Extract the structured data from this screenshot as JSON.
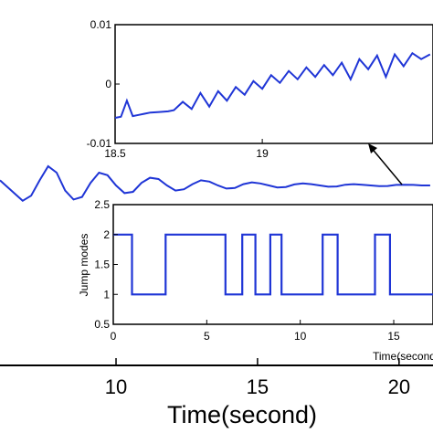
{
  "chart_data": [
    {
      "type": "line",
      "role": "main",
      "xlabel": "Time(second)",
      "xlim": [
        5.9,
        21.2
      ],
      "xticks": [
        "10",
        "15",
        "20"
      ],
      "series": [
        {
          "color": "#1f35d6",
          "x": [
            5.9,
            6.1,
            6.4,
            6.7,
            7.0,
            7.3,
            7.6,
            7.9,
            8.2,
            8.5,
            8.8,
            9.1,
            9.4,
            9.7,
            10.0,
            10.3,
            10.6,
            10.9,
            11.2,
            11.5,
            11.8,
            12.1,
            12.4,
            12.7,
            13.0,
            13.3,
            13.6,
            13.9,
            14.2,
            14.5,
            14.8,
            15.1,
            15.4,
            15.7,
            16.0,
            16.3,
            16.6,
            16.9,
            17.2,
            17.5,
            17.8,
            18.1,
            18.4,
            18.7,
            19.0,
            19.3,
            19.6,
            19.9,
            20.2,
            20.5,
            20.8,
            21.1
          ],
          "y": [
            0.2,
            0.0,
            -0.3,
            -0.6,
            -0.4,
            0.2,
            0.75,
            0.5,
            -0.2,
            -0.55,
            -0.45,
            0.1,
            0.5,
            0.4,
            0.0,
            -0.3,
            -0.25,
            0.1,
            0.3,
            0.25,
            0.0,
            -0.2,
            -0.15,
            0.05,
            0.2,
            0.15,
            0.0,
            -0.12,
            -0.1,
            0.05,
            0.12,
            0.08,
            0.0,
            -0.08,
            -0.06,
            0.04,
            0.08,
            0.05,
            0.0,
            -0.05,
            -0.04,
            0.03,
            0.05,
            0.03,
            0.0,
            -0.03,
            -0.02,
            0.02,
            0.03,
            0.02,
            0.0,
            0.0
          ]
        }
      ]
    },
    {
      "type": "line",
      "role": "zoom-inset",
      "xlim": [
        18.5,
        19.58
      ],
      "ylim": [
        -0.01,
        0.01
      ],
      "xticks": [
        "18.5",
        "19"
      ],
      "yticks": [
        "0.01",
        "0",
        "-0.01"
      ],
      "series": [
        {
          "color": "#1f35d6",
          "x": [
            18.5,
            18.52,
            18.54,
            18.56,
            18.58,
            18.6,
            18.62,
            18.65,
            18.68,
            18.7,
            18.73,
            18.76,
            18.79,
            18.82,
            18.85,
            18.88,
            18.91,
            18.94,
            18.97,
            19.0,
            19.03,
            19.06,
            19.09,
            19.12,
            19.15,
            19.18,
            19.21,
            19.24,
            19.27,
            19.3,
            19.33,
            19.36,
            19.39,
            19.42,
            19.45,
            19.48,
            19.51,
            19.54,
            19.57
          ],
          "y": [
            -0.0057,
            -0.0055,
            -0.0028,
            -0.0054,
            -0.0052,
            -0.005,
            -0.0048,
            -0.0047,
            -0.0046,
            -0.0044,
            -0.003,
            -0.0042,
            -0.0015,
            -0.0038,
            -0.0012,
            -0.0028,
            -0.0005,
            -0.0018,
            0.0005,
            -0.0008,
            0.0015,
            0.0002,
            0.0022,
            0.0008,
            0.0028,
            0.0012,
            0.0032,
            0.0015,
            0.0036,
            0.0008,
            0.0042,
            0.0025,
            0.0048,
            0.0012,
            0.005,
            0.003,
            0.0052,
            0.0042,
            0.005
          ]
        }
      ]
    },
    {
      "type": "line",
      "role": "jump-modes-inset",
      "xlim": [
        0,
        17.1
      ],
      "ylim": [
        0.5,
        2.5
      ],
      "ylabel": "Jump modes",
      "xlabel": "Time(second)",
      "xticks": [
        "0",
        "5",
        "10",
        "15"
      ],
      "yticks": [
        "2.5",
        "2",
        "1.5",
        "1",
        "0.5"
      ],
      "series": [
        {
          "color": "#1f35d6",
          "step": true,
          "x": [
            0,
            1.0,
            1.0,
            2.8,
            2.8,
            6.0,
            6.0,
            6.9,
            6.9,
            7.6,
            7.6,
            8.4,
            8.4,
            9.0,
            9.0,
            11.2,
            11.2,
            12.0,
            12.0,
            14.0,
            14.0,
            14.8,
            14.8,
            17.1
          ],
          "y": [
            2,
            2,
            1,
            1,
            2,
            2,
            1,
            1,
            2,
            2,
            1,
            1,
            2,
            2,
            1,
            1,
            2,
            2,
            1,
            1,
            2,
            2,
            1,
            1
          ]
        }
      ]
    }
  ]
}
